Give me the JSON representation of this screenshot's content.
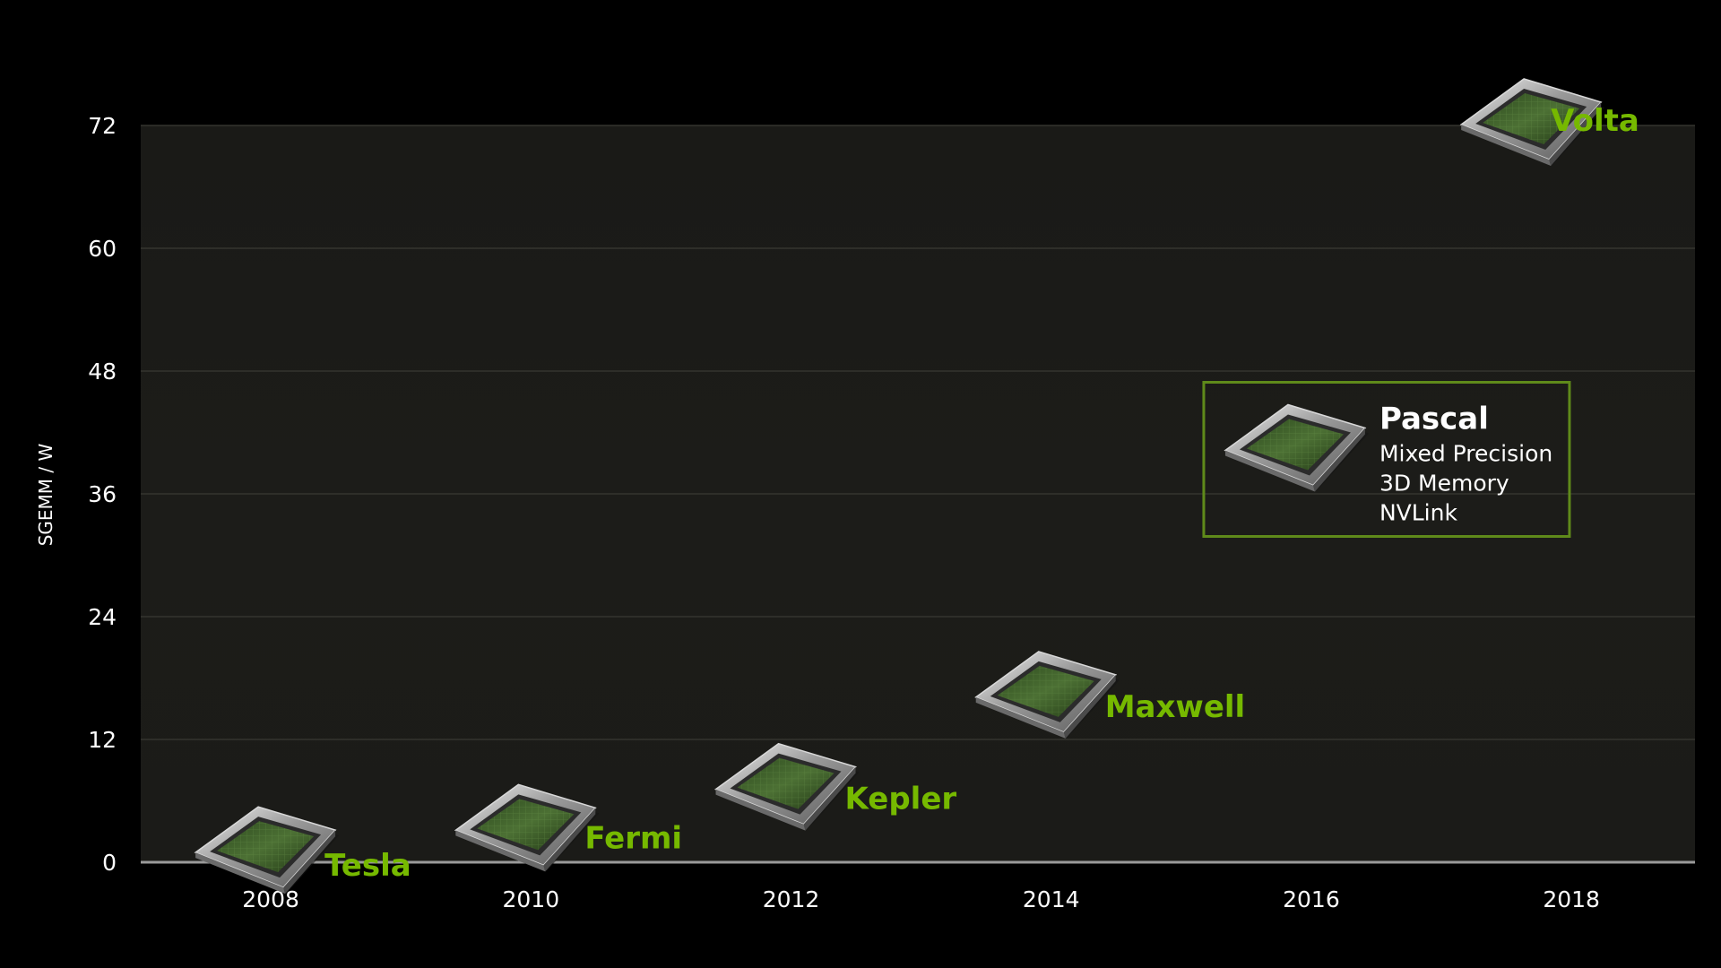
{
  "chart_data": {
    "type": "scatter",
    "ylabel": "SGEMM / W",
    "xlabel": "",
    "title": "",
    "xlim": [
      2007,
      2018.95
    ],
    "ylim": [
      0,
      72
    ],
    "x_ticks": [
      "2008",
      "2010",
      "2012",
      "2014",
      "2016",
      "2018"
    ],
    "y_ticks": [
      "0",
      "12",
      "24",
      "36",
      "48",
      "60",
      "72"
    ],
    "grid": true,
    "points": [
      {
        "name": "Tesla",
        "x": 2008,
        "y": 2
      },
      {
        "name": "Fermi",
        "x": 2010,
        "y": 4
      },
      {
        "name": "Kepler",
        "x": 2012,
        "y": 8
      },
      {
        "name": "Maxwell",
        "x": 2014,
        "y": 17
      },
      {
        "name": "Pascal",
        "x": 2016,
        "y": 42,
        "features": [
          "Mixed Precision",
          "3D Memory",
          "NVLink"
        ]
      },
      {
        "name": "Volta",
        "x": 2018,
        "y": 72
      }
    ],
    "colors": {
      "label": "#76b900",
      "highlight_label": "#ffffff",
      "callout_border": "#5f8a1a",
      "axis_text": "#ffffff",
      "grid": "#34342f",
      "plot_bg": "#1b1b18"
    }
  }
}
